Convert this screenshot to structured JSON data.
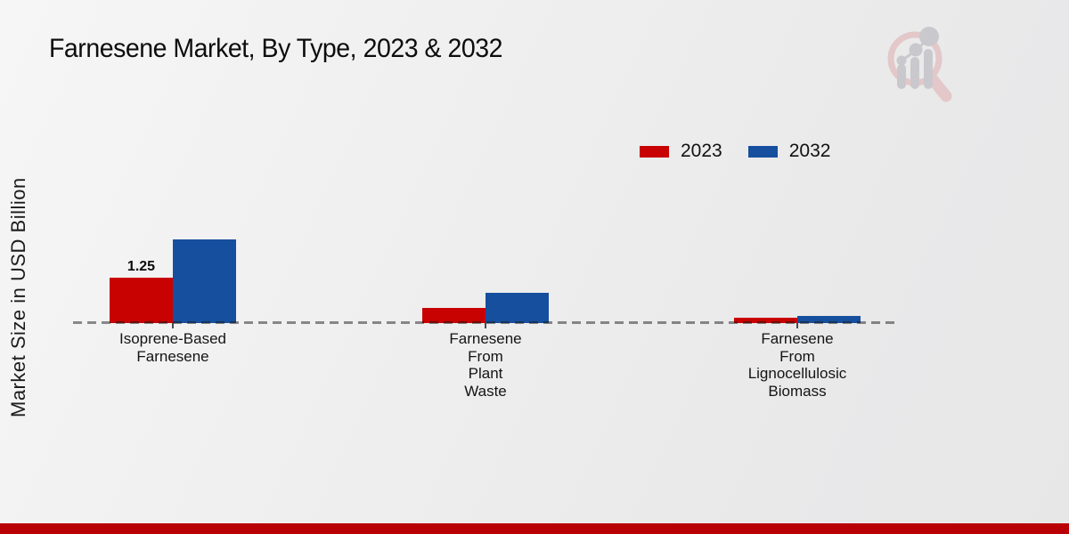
{
  "title": "Farnesene Market, By Type, 2023 & 2032",
  "y_axis_label": "Market Size in USD Billion",
  "legend": {
    "items": [
      {
        "label": "2023",
        "color": "#c80101"
      },
      {
        "label": "2032",
        "color": "#164f9d"
      }
    ]
  },
  "chart_data": {
    "type": "bar",
    "categories": [
      "Isoprene-Based\nFarnesene",
      "Farnesene\nFrom\nPlant\nWaste",
      "Farnesene\nFrom\nLignocellulosic\nBiomass"
    ],
    "series": [
      {
        "name": "2023",
        "color": "#c80101",
        "values": [
          1.25,
          0.42,
          0.14
        ]
      },
      {
        "name": "2032",
        "color": "#164f9d",
        "values": [
          2.3,
          0.83,
          0.2
        ]
      }
    ],
    "annotations": [
      {
        "series": "2023",
        "category_index": 0,
        "text": "1.25"
      }
    ],
    "title": "Farnesene Market, By Type, 2023 & 2032",
    "xlabel": "",
    "ylabel": "Market Size in USD Billion",
    "ylim": [
      0,
      2.5
    ],
    "grid": false,
    "legend_position": "top-right",
    "baseline_style": "dashed"
  },
  "footer": {
    "accent_color": "#b90004"
  },
  "watermark_name": "magnifier-bar-chart-logo"
}
